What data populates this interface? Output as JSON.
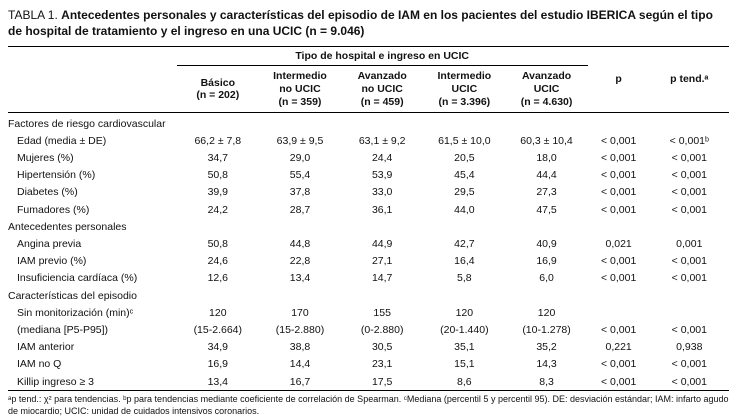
{
  "title": {
    "prefix": "TABLA 1.",
    "text": "Antecedentes personales y características del episodio de IAM en los pacientes del estudio IBERICA según el tipo de hospital de tratamiento y el ingreso en una UCIC (n = 9.046)"
  },
  "table": {
    "group_header": "Tipo de hospital e ingreso en UCIC",
    "p_header": "p",
    "p_tend_header": "p tend.ᵃ",
    "columns": [
      "Básico\n(n = 202)",
      "Intermedio\nno UCIC\n(n = 359)",
      "Avanzado\nno UCIC\n(n = 459)",
      "Intermedio\nUCIC\n(n = 3.396)",
      "Avanzado\nUCIC\n(n = 4.630)"
    ],
    "rows": [
      {
        "type": "section",
        "label": "Factores de riesgo cardiovascular"
      },
      {
        "type": "data",
        "label": "Edad (media ± DE)",
        "values": [
          "66,2 ± 7,8",
          "63,9 ± 9,5",
          "63,1 ± 9,2",
          "61,5 ± 10,0",
          "60,3 ± 10,4",
          "< 0,001",
          "< 0,001ᵇ"
        ]
      },
      {
        "type": "data",
        "label": "Mujeres (%)",
        "values": [
          "34,7",
          "29,0",
          "24,4",
          "20,5",
          "18,0",
          "< 0,001",
          "< 0,001"
        ]
      },
      {
        "type": "data",
        "label": "Hipertensión (%)",
        "values": [
          "50,8",
          "55,4",
          "53,9",
          "45,4",
          "44,4",
          "< 0,001",
          "< 0,001"
        ]
      },
      {
        "type": "data",
        "label": "Diabetes (%)",
        "values": [
          "39,9",
          "37,8",
          "33,0",
          "29,5",
          "27,3",
          "< 0,001",
          "< 0,001"
        ]
      },
      {
        "type": "data",
        "label": "Fumadores (%)",
        "values": [
          "24,2",
          "28,7",
          "36,1",
          "44,0",
          "47,5",
          "< 0,001",
          "< 0,001"
        ]
      },
      {
        "type": "section",
        "label": "Antecedentes personales"
      },
      {
        "type": "data",
        "label": "Angina previa",
        "values": [
          "50,8",
          "44,8",
          "44,9",
          "42,7",
          "40,9",
          "0,021",
          "0,001"
        ]
      },
      {
        "type": "data",
        "label": "IAM previo (%)",
        "values": [
          "24,6",
          "22,8",
          "27,1",
          "16,4",
          "16,9",
          "< 0,001",
          "< 0,001"
        ]
      },
      {
        "type": "data",
        "label": "Insuficiencia cardíaca (%)",
        "values": [
          "12,6",
          "13,4",
          "14,7",
          "5,8",
          "6,0",
          "< 0,001",
          "< 0,001"
        ]
      },
      {
        "type": "section",
        "label": "Características del episodio"
      },
      {
        "type": "data",
        "label": "Sin monitorización (min)ᶜ",
        "values": [
          "120",
          "170",
          "155",
          "120",
          "120",
          "",
          ""
        ]
      },
      {
        "type": "data",
        "label": "(mediana [P5-P95])",
        "values": [
          "(15-2.664)",
          "(15-2.880)",
          "(0-2.880)",
          "(20-1.440)",
          "(10-1.278)",
          "< 0,001",
          "< 0,001"
        ]
      },
      {
        "type": "data",
        "label": "IAM anterior",
        "values": [
          "34,9",
          "38,8",
          "30,5",
          "35,1",
          "35,2",
          "0,221",
          "0,938"
        ]
      },
      {
        "type": "data",
        "label": "IAM no Q",
        "values": [
          "16,9",
          "14,4",
          "23,1",
          "15,1",
          "14,3",
          "< 0,001",
          "< 0,001"
        ]
      },
      {
        "type": "data",
        "label": "Killip ingreso ≥ 3",
        "values": [
          "13,4",
          "16,7",
          "17,5",
          "8,6",
          "8,3",
          "< 0,001",
          "< 0,001"
        ]
      }
    ]
  },
  "footnotes": "ᵃp tend.: χ² para tendencias. ᵇp para tendencias mediante coeficiente de correlación de Spearman. ᶜMediana (percentil 5 y percentil 95). DE: desviación estándar; IAM: infarto agudo de miocardio; UCIC: unidad de cuidados intensivos coronarios."
}
